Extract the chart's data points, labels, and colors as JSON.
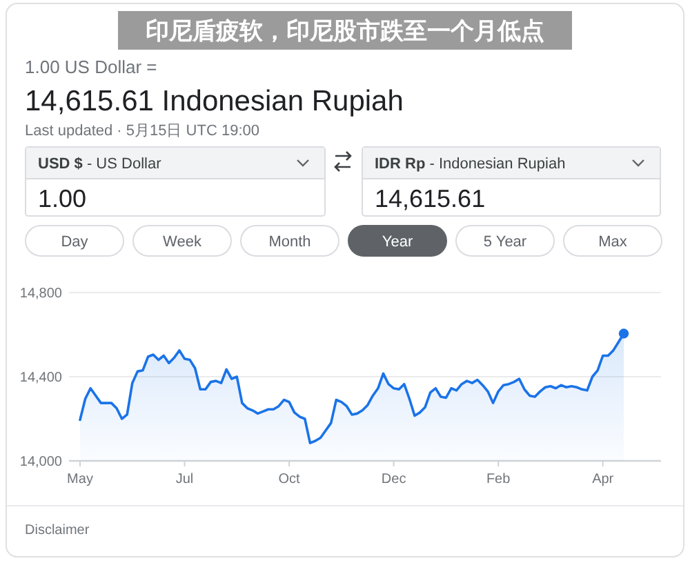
{
  "chart_data": [
    {
      "type": "other",
      "title": "印尼盾疲软，印尼股市跌至一个月低点",
      "annotations": [
        "1.00 US Dollar =",
        "14,615.61 Indonesian Rupiah",
        "Last updated · 5月15日 UTC 19:00",
        "USD $ - US Dollar",
        "1.00",
        "IDR Rp - Indonesian Rupiah",
        "14,615.61",
        "Day",
        "Week",
        "Month",
        "Year",
        "5 Year",
        "Max"
      ]
    },
    {
      "type": "area",
      "categories": [
        "May",
        null,
        null,
        null,
        null,
        null,
        null,
        null,
        null,
        null,
        null,
        null,
        null,
        null,
        null,
        null,
        null,
        null,
        null,
        null,
        "Jul",
        null,
        null,
        null,
        null,
        null,
        null,
        null,
        null,
        null,
        null,
        null,
        null,
        null,
        null,
        null,
        null,
        null,
        null,
        null,
        "Oct",
        null,
        null,
        null,
        null,
        null,
        null,
        null,
        null,
        null,
        null,
        null,
        null,
        null,
        null,
        null,
        null,
        null,
        null,
        null,
        "Dec",
        null,
        null,
        null,
        null,
        null,
        null,
        null,
        null,
        null,
        null,
        null,
        null,
        null,
        null,
        null,
        null,
        null,
        null,
        null,
        "Feb",
        null,
        null,
        null,
        null,
        null,
        null,
        null,
        null,
        null,
        null,
        null,
        null,
        null,
        null,
        null,
        null,
        null,
        null,
        null,
        "Apr",
        null,
        null,
        null,
        null
      ],
      "series": [
        {
          "color": "#1a73e8",
          "values": [
            14195,
            14295,
            14345,
            14310,
            14275,
            14275,
            14275,
            14250,
            14200,
            14220,
            14370,
            14425,
            14430,
            14495,
            14505,
            14480,
            14500,
            14465,
            14490,
            14525,
            14485,
            14480,
            14440,
            14340,
            14340,
            14375,
            14380,
            14370,
            14435,
            14390,
            14400,
            14275,
            14250,
            14240,
            14225,
            14235,
            14245,
            14245,
            14260,
            14290,
            14280,
            14230,
            14210,
            14200,
            14085,
            14095,
            14110,
            14145,
            14180,
            14290,
            14280,
            14260,
            14220,
            14225,
            14240,
            14265,
            14310,
            14345,
            14415,
            14365,
            14345,
            14340,
            14365,
            14295,
            14215,
            14230,
            14255,
            14325,
            14345,
            14305,
            14300,
            14345,
            14335,
            14365,
            14380,
            14370,
            14385,
            14360,
            14330,
            14275,
            14330,
            14360,
            14365,
            14375,
            14390,
            14340,
            14310,
            14305,
            14330,
            14350,
            14355,
            14345,
            14360,
            14350,
            14355,
            14350,
            14340,
            14335,
            14400,
            14430,
            14500,
            14500,
            14525,
            14565,
            14605
          ]
        },
        {
          "type": "scatter",
          "color": "#1a73e8",
          "values": [
            null,
            null,
            null,
            null,
            null,
            null,
            null,
            null,
            null,
            null,
            null,
            null,
            null,
            null,
            null,
            null,
            null,
            null,
            null,
            null,
            null,
            null,
            null,
            null,
            null,
            null,
            null,
            null,
            null,
            null,
            null,
            null,
            null,
            null,
            null,
            null,
            null,
            null,
            null,
            null,
            null,
            null,
            null,
            null,
            null,
            null,
            null,
            null,
            null,
            null,
            null,
            null,
            null,
            null,
            null,
            null,
            null,
            null,
            null,
            null,
            null,
            null,
            null,
            null,
            null,
            null,
            null,
            null,
            null,
            null,
            null,
            null,
            null,
            null,
            null,
            null,
            null,
            null,
            null,
            null,
            null,
            null,
            null,
            null,
            null,
            null,
            null,
            null,
            null,
            null,
            null,
            null,
            null,
            null,
            null,
            null,
            null,
            null,
            null,
            null,
            null,
            null,
            null,
            null,
            14605
          ]
        }
      ],
      "ylim": [
        14000,
        14800
      ],
      "yticks": [
        {
          "value": 14000,
          "label": "14,000"
        },
        {
          "value": 14400,
          "label": "14,400"
        },
        {
          "value": 14800,
          "label": "14,800"
        }
      ],
      "grid": "y",
      "annotations": [
        "Disclaimer"
      ]
    }
  ]
}
